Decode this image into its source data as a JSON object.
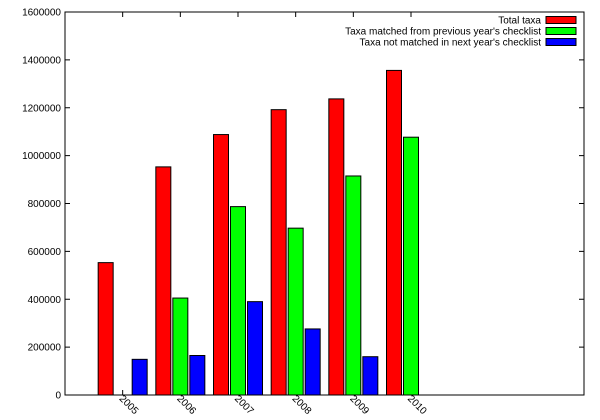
{
  "chart_data": {
    "type": "bar",
    "categories": [
      "2005",
      "2006",
      "2007",
      "2008",
      "2009",
      "2010"
    ],
    "series": [
      {
        "name": "Total taxa",
        "color": "#ff0000",
        "values": [
          553000,
          953000,
          1088000,
          1192000,
          1237000,
          1356000
        ]
      },
      {
        "name": "Taxa matched from previous year's checklist",
        "color": "#00ff00",
        "values": [
          null,
          405000,
          787000,
          697000,
          915000,
          1077000
        ]
      },
      {
        "name": "Taxa not matched in next year's checklist",
        "color": "#0000ff",
        "values": [
          149000,
          165000,
          390000,
          276000,
          160000,
          null
        ]
      }
    ],
    "yticks": [
      "0",
      "200000",
      "400000",
      "600000",
      "800000",
      "1000000",
      "1200000",
      "1400000",
      "1600000"
    ],
    "ylim": [
      0,
      1600000
    ],
    "title": "",
    "xlabel": "",
    "ylabel": "",
    "legend_position": "top-right",
    "grid": false
  }
}
